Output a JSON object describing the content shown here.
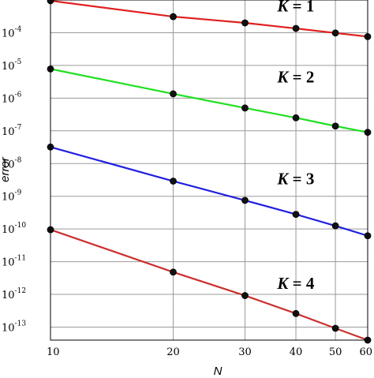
{
  "chart_data": {
    "type": "line",
    "title": "",
    "xlabel": "N",
    "ylabel": "error",
    "x_scale": "log",
    "y_scale": "log",
    "xlim": [
      10,
      60
    ],
    "ylim": [
      4e-14,
      0.001
    ],
    "grid": true,
    "x_ticks": [
      10,
      20,
      30,
      40,
      50,
      60
    ],
    "x_tick_labels": [
      "10",
      "20",
      "30",
      "40",
      "50",
      "60"
    ],
    "y_ticks": [
      {
        "value": 0.0001,
        "base": "10",
        "exp": "-4"
      },
      {
        "value": 1e-05,
        "base": "10",
        "exp": "-5"
      },
      {
        "value": 1e-06,
        "base": "10",
        "exp": "-6"
      },
      {
        "value": 1e-07,
        "base": "10",
        "exp": "-7"
      },
      {
        "value": 1e-08,
        "base": "10",
        "exp": "-8"
      },
      {
        "value": 1e-09,
        "base": "10",
        "exp": "-9"
      },
      {
        "value": 1e-10,
        "base": "10",
        "exp": "-10"
      },
      {
        "value": 1e-11,
        "base": "10",
        "exp": "-11"
      },
      {
        "value": 1e-12,
        "base": "10",
        "exp": "-12"
      },
      {
        "value": 1e-13,
        "base": "10",
        "exp": "-13"
      }
    ],
    "series": [
      {
        "name": "K = 1",
        "name_var": "K",
        "name_rest": " = 1",
        "color": "#e02020",
        "x": [
          10,
          20,
          30,
          40,
          50,
          60
        ],
        "y": [
          0.00095,
          0.00031,
          0.0002,
          0.000135,
          9.8e-05,
          7.6e-05
        ],
        "label_at": {
          "x": 36,
          "y": 0.00045
        }
      },
      {
        "name": "K = 2",
        "name_var": "K",
        "name_rest": " = 2",
        "color": "#20e020",
        "x": [
          10,
          20,
          30,
          40,
          50,
          60
        ],
        "y": [
          7.8e-06,
          1.35e-06,
          5e-07,
          2.5e-07,
          1.4e-07,
          9e-08
        ],
        "label_at": {
          "x": 36,
          "y": 3e-06
        }
      },
      {
        "name": "K = 3",
        "name_var": "K",
        "name_rest": " = 3",
        "color": "#2020e0",
        "x": [
          10,
          20,
          30,
          40,
          50,
          60
        ],
        "y": [
          3.2e-08,
          2.9e-09,
          7.5e-10,
          2.8e-10,
          1.25e-10,
          6.2e-11
        ],
        "label_at": {
          "x": 36,
          "y": 2.3e-09
        }
      },
      {
        "name": "K = 4",
        "name_var": "K",
        "name_rest": " = 4",
        "color": "#cc3030",
        "x": [
          10,
          20,
          30,
          40,
          50,
          60
        ],
        "y": [
          9.5e-11,
          4.8e-12,
          9.2e-13,
          2.6e-13,
          9.2e-14,
          4e-14
        ],
        "label_at": {
          "x": 36,
          "y": 1.5e-12
        }
      }
    ]
  }
}
